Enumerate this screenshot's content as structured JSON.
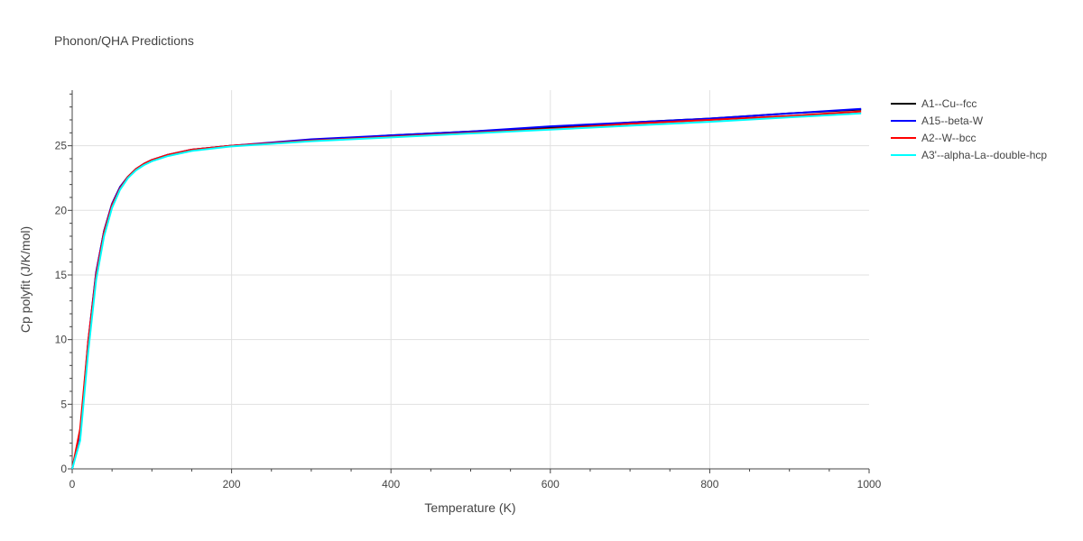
{
  "chart_data": {
    "type": "line",
    "title": "Phonon/QHA Predictions",
    "xlabel": "Temperature (K)",
    "ylabel": "Cp polyfit (J/K/mol)",
    "xlim": [
      0,
      1000
    ],
    "ylim": [
      0,
      29.3
    ],
    "xticks": [
      0,
      200,
      400,
      600,
      800,
      1000
    ],
    "yticks": [
      0,
      5,
      10,
      15,
      20,
      25
    ],
    "xtick_labels": [
      "0",
      "200",
      "400",
      "600",
      "800",
      "1000"
    ],
    "ytick_labels": [
      "0",
      "5",
      "10",
      "15",
      "20",
      "25"
    ],
    "grid": true,
    "legend_position": "top-right outside",
    "series": [
      {
        "name": "A1--Cu--fcc",
        "color": "#000000",
        "x": [
          0,
          10,
          20,
          30,
          40,
          50,
          60,
          70,
          80,
          90,
          100,
          120,
          150,
          200,
          300,
          400,
          500,
          600,
          700,
          800,
          900,
          990
        ],
        "y": [
          0,
          2.6,
          9.7,
          15.1,
          18.4,
          20.5,
          21.8,
          22.6,
          23.2,
          23.6,
          23.9,
          24.3,
          24.7,
          25.0,
          25.4,
          25.8,
          26.1,
          26.4,
          26.8,
          27.1,
          27.5,
          27.8
        ]
      },
      {
        "name": "A15--beta-W",
        "color": "#0000ff",
        "x": [
          0,
          10,
          20,
          30,
          40,
          50,
          60,
          70,
          80,
          90,
          100,
          120,
          150,
          200,
          300,
          400,
          500,
          600,
          700,
          800,
          900,
          990
        ],
        "y": [
          0,
          2.7,
          9.8,
          15.2,
          18.4,
          20.5,
          21.8,
          22.6,
          23.2,
          23.6,
          23.9,
          24.3,
          24.7,
          25.0,
          25.5,
          25.8,
          26.1,
          26.5,
          26.8,
          27.1,
          27.5,
          27.85
        ]
      },
      {
        "name": "A2--W--bcc",
        "color": "#ff0000",
        "x": [
          0,
          10,
          20,
          30,
          40,
          50,
          60,
          70,
          80,
          90,
          100,
          120,
          150,
          200,
          300,
          400,
          500,
          600,
          700,
          800,
          900,
          990
        ],
        "y": [
          0,
          3.1,
          9.8,
          15.0,
          18.3,
          20.4,
          21.7,
          22.6,
          23.2,
          23.6,
          23.9,
          24.3,
          24.7,
          25.0,
          25.4,
          25.7,
          26.0,
          26.3,
          26.7,
          27.0,
          27.3,
          27.65
        ]
      },
      {
        "name": "A3'--alpha-La--double-hcp",
        "color": "#00ffff",
        "x": [
          0,
          10,
          20,
          30,
          40,
          50,
          60,
          70,
          80,
          90,
          100,
          120,
          150,
          200,
          300,
          400,
          500,
          600,
          700,
          800,
          900,
          990
        ],
        "y": [
          0,
          2.2,
          9.0,
          14.6,
          18.0,
          20.2,
          21.6,
          22.5,
          23.1,
          23.5,
          23.8,
          24.2,
          24.6,
          24.95,
          25.35,
          25.65,
          25.95,
          26.25,
          26.55,
          26.85,
          27.2,
          27.5
        ]
      }
    ]
  }
}
